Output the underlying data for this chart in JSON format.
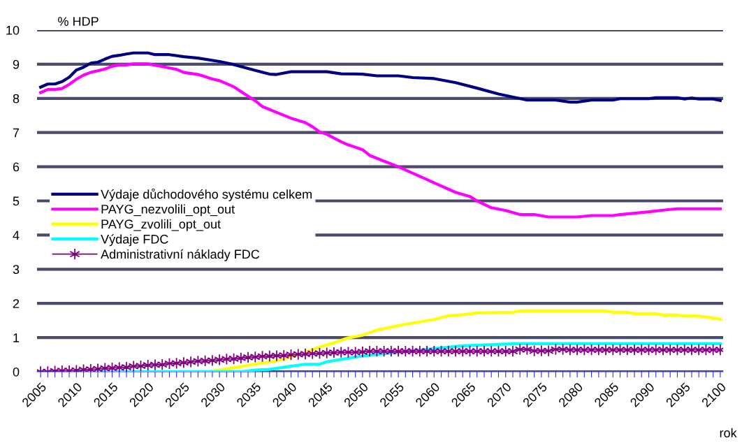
{
  "chart_data": {
    "type": "line",
    "xlabel": "rok",
    "ylabel": "% HDP",
    "xlim": [
      2004.5,
      2100.4
    ],
    "ylim": [
      0,
      10
    ],
    "yticks": [
      0,
      1,
      2,
      3,
      4,
      5,
      6,
      7,
      8,
      9,
      10
    ],
    "xticks": [
      2005,
      {
        "value": 2006,
        "label": null
      },
      {
        "value": 2007,
        "label": null
      },
      {
        "value": 2008,
        "label": null
      },
      {
        "value": 2009,
        "label": null
      },
      2010,
      {
        "value": 2011,
        "label": null
      },
      {
        "value": 2012,
        "label": null
      },
      {
        "value": 2013,
        "label": null
      },
      {
        "value": 2014,
        "label": null
      },
      2015,
      {
        "value": 2016,
        "label": null
      },
      {
        "value": 2017,
        "label": null
      },
      {
        "value": 2018,
        "label": null
      },
      {
        "value": 2019,
        "label": null
      },
      2020,
      {
        "value": 2021,
        "label": null
      },
      {
        "value": 2022,
        "label": null
      },
      {
        "value": 2023,
        "label": null
      },
      {
        "value": 2024,
        "label": null
      },
      2025,
      {
        "value": 2026,
        "label": null
      },
      {
        "value": 2027,
        "label": null
      },
      {
        "value": 2028,
        "label": null
      },
      {
        "value": 2029,
        "label": null
      },
      2030,
      {
        "value": 2031,
        "label": null
      },
      {
        "value": 2032,
        "label": null
      },
      {
        "value": 2033,
        "label": null
      },
      {
        "value": 2034,
        "label": null
      },
      2035,
      {
        "value": 2036,
        "label": null
      },
      {
        "value": 2037,
        "label": null
      },
      {
        "value": 2038,
        "label": null
      },
      {
        "value": 2039,
        "label": null
      },
      2040,
      {
        "value": 2041,
        "label": null
      },
      {
        "value": 2042,
        "label": null
      },
      {
        "value": 2043,
        "label": null
      },
      {
        "value": 2044,
        "label": null
      },
      2045,
      {
        "value": 2046,
        "label": null
      },
      {
        "value": 2047,
        "label": null
      },
      {
        "value": 2048,
        "label": null
      },
      {
        "value": 2049,
        "label": null
      },
      2050,
      {
        "value": 2051,
        "label": null
      },
      {
        "value": 2052,
        "label": null
      },
      {
        "value": 2053,
        "label": null
      },
      {
        "value": 2054,
        "label": null
      },
      2055,
      {
        "value": 2056,
        "label": null
      },
      {
        "value": 2057,
        "label": null
      },
      {
        "value": 2058,
        "label": null
      },
      {
        "value": 2059,
        "label": null
      },
      2060,
      {
        "value": 2061,
        "label": null
      },
      {
        "value": 2062,
        "label": null
      },
      {
        "value": 2063,
        "label": null
      },
      {
        "value": 2064,
        "label": null
      },
      2065,
      {
        "value": 2066,
        "label": null
      },
      {
        "value": 2067,
        "label": null
      },
      {
        "value": 2068,
        "label": null
      },
      {
        "value": 2069,
        "label": null
      },
      2070,
      {
        "value": 2071,
        "label": null
      },
      {
        "value": 2072,
        "label": null
      },
      {
        "value": 2073,
        "label": null
      },
      {
        "value": 2074,
        "label": null
      },
      2075,
      {
        "value": 2076,
        "label": null
      },
      {
        "value": 2077,
        "label": null
      },
      {
        "value": 2078,
        "label": null
      },
      {
        "value": 2079,
        "label": null
      },
      2080,
      {
        "value": 2081,
        "label": null
      },
      {
        "value": 2082,
        "label": null
      },
      {
        "value": 2083,
        "label": null
      },
      {
        "value": 2084,
        "label": null
      },
      2085,
      {
        "value": 2086,
        "label": null
      },
      {
        "value": 2087,
        "label": null
      },
      {
        "value": 2088,
        "label": null
      },
      {
        "value": 2089,
        "label": null
      },
      2090,
      {
        "value": 2091,
        "label": null
      },
      {
        "value": 2092,
        "label": null
      },
      {
        "value": 2093,
        "label": null
      },
      {
        "value": 2094,
        "label": null
      },
      2095,
      {
        "value": 2096,
        "label": null
      },
      {
        "value": 2097,
        "label": null
      },
      {
        "value": 2098,
        "label": null
      },
      {
        "value": 2099,
        "label": null
      },
      2100
    ],
    "grid": "y",
    "legend": "left",
    "series": [
      {
        "name": "Výdaje důchodového systému celkem",
        "color": "#000080",
        "marker": "none",
        "x": [
          2005,
          2006,
          2007,
          2008,
          2009,
          2010,
          2011,
          2012,
          2013,
          2014,
          2015,
          2016,
          2017,
          2018,
          2020,
          2021,
          2023,
          2025,
          2027,
          2030,
          2032,
          2035,
          2037,
          2038,
          2040,
          2045,
          2047,
          2050,
          2052,
          2055,
          2057,
          2060,
          2063,
          2066,
          2069,
          2073,
          2077,
          2079,
          2080,
          2082,
          2085,
          2086,
          2090,
          2091,
          2094,
          2095,
          2096,
          2097,
          2099,
          2100
        ],
        "values": [
          8.33,
          8.42,
          8.42,
          8.49,
          8.62,
          8.83,
          8.91,
          9.03,
          9.06,
          9.15,
          9.23,
          9.26,
          9.3,
          9.33,
          9.33,
          9.28,
          9.28,
          9.22,
          9.18,
          9.08,
          8.99,
          8.82,
          8.71,
          8.7,
          8.78,
          8.78,
          8.72,
          8.71,
          8.66,
          8.66,
          8.61,
          8.58,
          8.46,
          8.3,
          8.13,
          7.95,
          7.95,
          7.89,
          7.89,
          7.95,
          7.95,
          7.99,
          7.99,
          8.02,
          8.02,
          7.98,
          8.01,
          7.98,
          7.98,
          7.94
        ]
      },
      {
        "name": "PAYG_nezvolili_opt_out",
        "color": "#ff00ff",
        "marker": "none",
        "x": [
          2005,
          2006,
          2007,
          2008,
          2009,
          2010,
          2011,
          2012,
          2013,
          2014,
          2015,
          2016,
          2017,
          2018,
          2020,
          2022,
          2024,
          2025,
          2027,
          2029,
          2030,
          2032,
          2033,
          2035,
          2036,
          2038,
          2040,
          2042,
          2043,
          2044,
          2045,
          2047,
          2048,
          2050,
          2051,
          2055,
          2058,
          2060,
          2063,
          2065,
          2066,
          2068,
          2070,
          2072,
          2074,
          2076,
          2080,
          2082,
          2085,
          2086,
          2088,
          2090,
          2092,
          2094,
          2100
        ],
        "values": [
          8.17,
          8.26,
          8.26,
          8.29,
          8.41,
          8.56,
          8.68,
          8.76,
          8.81,
          8.86,
          8.94,
          8.98,
          8.98,
          9.01,
          9.01,
          8.93,
          8.85,
          8.76,
          8.7,
          8.57,
          8.52,
          8.34,
          8.2,
          7.93,
          7.76,
          7.59,
          7.42,
          7.29,
          7.17,
          7.02,
          6.95,
          6.73,
          6.64,
          6.5,
          6.33,
          6.0,
          5.72,
          5.53,
          5.25,
          5.13,
          5.0,
          4.8,
          4.72,
          4.6,
          4.6,
          4.53,
          4.53,
          4.57,
          4.57,
          4.6,
          4.64,
          4.68,
          4.73,
          4.77,
          4.77
        ]
      },
      {
        "name": "PAYG_zvolili_opt_out",
        "color": "#ffff00",
        "marker": "none",
        "x": [
          2005,
          2028,
          2030,
          2032,
          2035,
          2038,
          2040,
          2042,
          2044,
          2046,
          2048,
          2050,
          2052,
          2056,
          2060,
          2062,
          2064,
          2066,
          2071,
          2072,
          2084,
          2085,
          2087,
          2088,
          2091,
          2092,
          2094,
          2095,
          2097,
          2099,
          2100
        ],
        "values": [
          0.0,
          0.0,
          0.05,
          0.12,
          0.22,
          0.32,
          0.43,
          0.57,
          0.72,
          0.85,
          0.99,
          1.07,
          1.22,
          1.39,
          1.53,
          1.64,
          1.67,
          1.72,
          1.74,
          1.78,
          1.78,
          1.74,
          1.74,
          1.7,
          1.7,
          1.66,
          1.66,
          1.63,
          1.63,
          1.57,
          1.54
        ]
      },
      {
        "name": "Výdaje FDC",
        "color": "#00ffff",
        "marker": "none",
        "x": [
          2005,
          2033,
          2035,
          2037,
          2040,
          2042,
          2044,
          2045,
          2047,
          2049,
          2050,
          2053,
          2056,
          2061,
          2064,
          2070,
          2072,
          2100
        ],
        "values": [
          0.0,
          0.0,
          0.05,
          0.07,
          0.16,
          0.22,
          0.22,
          0.29,
          0.36,
          0.43,
          0.46,
          0.53,
          0.59,
          0.7,
          0.76,
          0.81,
          0.82,
          0.82
        ]
      },
      {
        "name": "Administrativní náklady FDC",
        "color": "#800080",
        "marker": "cross",
        "x": [
          2005,
          2006,
          2007,
          2008,
          2009,
          2010,
          2011,
          2012,
          2013,
          2014,
          2015,
          2016,
          2017,
          2018,
          2019,
          2020,
          2021,
          2022,
          2023,
          2024,
          2025,
          2026,
          2027,
          2028,
          2029,
          2030,
          2031,
          2032,
          2033,
          2034,
          2035,
          2036,
          2037,
          2038,
          2039,
          2040,
          2041,
          2042,
          2043,
          2044,
          2045,
          2046,
          2047,
          2048,
          2049,
          2050,
          2051,
          2052,
          2053,
          2054,
          2055,
          2056,
          2057,
          2058,
          2059,
          2060,
          2061,
          2062,
          2063,
          2064,
          2065,
          2066,
          2067,
          2068,
          2069,
          2070,
          2071,
          2072,
          2073,
          2074,
          2075,
          2076,
          2077,
          2078,
          2079,
          2080,
          2081,
          2082,
          2083,
          2084,
          2085,
          2086,
          2087,
          2088,
          2089,
          2090,
          2091,
          2092,
          2093,
          2094,
          2095,
          2096,
          2097,
          2098,
          2099,
          2100
        ],
        "values": [
          0.0,
          0.0,
          0.02,
          0.03,
          0.03,
          0.04,
          0.06,
          0.07,
          0.08,
          0.1,
          0.11,
          0.12,
          0.13,
          0.16,
          0.17,
          0.19,
          0.2,
          0.21,
          0.24,
          0.25,
          0.27,
          0.29,
          0.31,
          0.32,
          0.33,
          0.35,
          0.37,
          0.38,
          0.4,
          0.42,
          0.43,
          0.45,
          0.46,
          0.47,
          0.48,
          0.5,
          0.51,
          0.52,
          0.53,
          0.54,
          0.55,
          0.56,
          0.57,
          0.57,
          0.57,
          0.58,
          0.6,
          0.6,
          0.6,
          0.6,
          0.6,
          0.6,
          0.6,
          0.6,
          0.6,
          0.6,
          0.6,
          0.6,
          0.6,
          0.6,
          0.6,
          0.6,
          0.6,
          0.6,
          0.6,
          0.6,
          0.6,
          0.65,
          0.65,
          0.61,
          0.61,
          0.61,
          0.65,
          0.65,
          0.64,
          0.64,
          0.64,
          0.64,
          0.64,
          0.64,
          0.64,
          0.64,
          0.64,
          0.64,
          0.64,
          0.64,
          0.64,
          0.64,
          0.64,
          0.64,
          0.64,
          0.64,
          0.64,
          0.64,
          0.64,
          0.64
        ]
      }
    ]
  }
}
